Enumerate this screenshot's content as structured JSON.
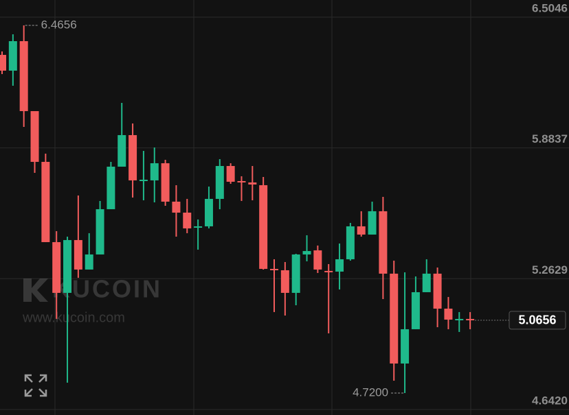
{
  "chart_data": {
    "type": "candlestick",
    "ylim": [
      4.6159,
      6.586
    ],
    "yticks": [
      6.5046,
      5.8837,
      5.2629,
      {
        "value": 4.642,
        "label": "4.6420"
      }
    ],
    "grid": true,
    "up_color": "#1fb98b",
    "down_color": "#f25c5c",
    "open": [
      6.3255,
      6.2506,
      6.3906,
      6.0585,
      5.8176,
      5.4366,
      5.1957,
      5.4464,
      5.3064,
      5.378,
      5.5929,
      5.7948,
      5.9446,
      5.7297,
      5.7297,
      5.8111,
      5.6287,
      5.5766,
      5.5083,
      5.5115,
      5.6418,
      5.798,
      5.7264,
      5.7199,
      5.7069,
      5.3096,
      5.3031,
      5.1957,
      5.378,
      5.3976,
      5.2999,
      5.2966,
      5.3552,
      5.5115,
      5.4724,
      5.5832,
      5.2869,
      4.8603,
      5.0231,
      5.1989,
      5.2869,
      5.1208,
      5.0687,
      5.072
    ],
    "high": [
      6.3418,
      6.4232,
      6.4656,
      6.0585,
      5.8567,
      5.4887,
      5.4627,
      5.658,
      5.479,
      5.632,
      5.8176,
      6.0976,
      5.9999,
      5.8697,
      5.886,
      5.8274,
      5.7069,
      5.6418,
      5.5441,
      5.7004,
      5.8306,
      5.8111,
      5.7492,
      5.798,
      5.746,
      5.3552,
      5.3422,
      5.3813,
      5.4692,
      5.4204,
      5.3324,
      5.4301,
      5.5278,
      5.5832,
      5.6287,
      5.6515,
      5.3487,
      5.2934,
      5.2738,
      5.3552,
      5.3162,
      5.1762,
      5.1045,
      5.1045
    ],
    "low": [
      6.2344,
      6.179,
      5.9836,
      5.7655,
      5.4366,
      5.072,
      4.7692,
      5.2673,
      5.3064,
      5.378,
      5.5929,
      5.7948,
      5.6483,
      5.6352,
      5.6255,
      5.6092,
      5.4627,
      5.479,
      5.4008,
      5.5018,
      5.5929,
      5.7134,
      5.632,
      5.6352,
      5.3064,
      5.1045,
      5.0882,
      5.1371,
      5.3455,
      5.2901,
      5.0036,
      5.212,
      5.3487,
      5.4627,
      5.4724,
      5.1664,
      4.7789,
      4.72,
      5.0231,
      5.1989,
      5.0329,
      5.0231,
      5.0101,
      5.0231
    ],
    "close": [
      6.2506,
      6.3906,
      6.0585,
      5.8176,
      5.4366,
      5.1957,
      5.4464,
      5.3064,
      5.378,
      5.5929,
      5.7948,
      5.9446,
      5.7297,
      5.7329,
      5.8111,
      5.6287,
      5.5766,
      5.5018,
      5.5115,
      5.6418,
      5.798,
      5.7232,
      5.7199,
      5.7101,
      5.3096,
      5.3064,
      5.1957,
      5.378,
      5.3943,
      5.3064,
      5.2966,
      5.3552,
      5.5115,
      5.4724,
      5.5832,
      5.2869,
      4.8603,
      5.0231,
      5.1989,
      5.2869,
      5.1208,
      5.0687,
      5.072,
      5.0656
    ],
    "high_label": "6.4656",
    "low_label": "4.7200",
    "last_label": "5.0656",
    "watermark": {
      "brand": "KUCOIN",
      "url": "www.kucoin.com"
    }
  }
}
